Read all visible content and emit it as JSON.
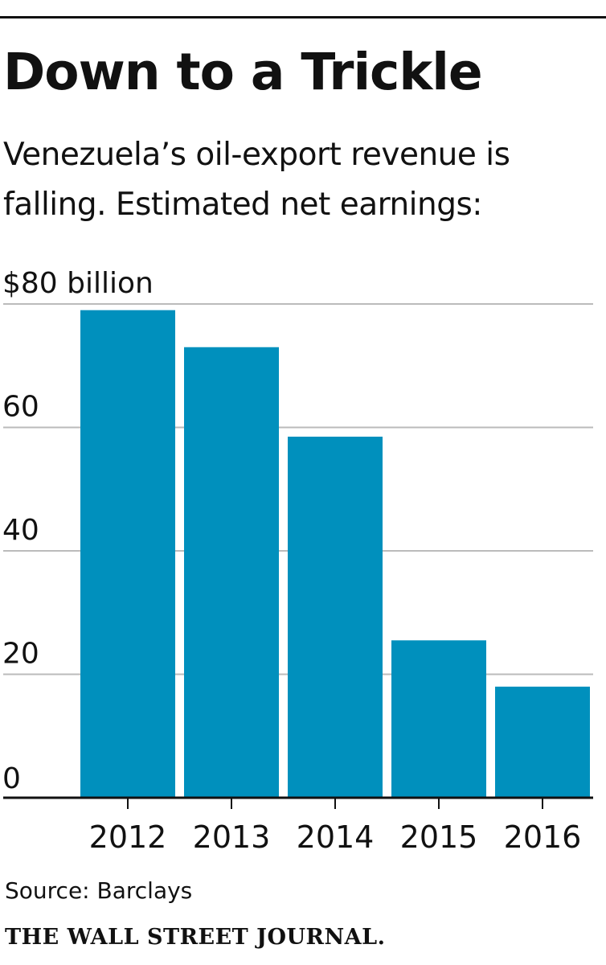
{
  "header": {
    "title": "Down to a Trickle",
    "subtitle": "Venezuela’s oil-export revenue is falling. Estimated net earnings:"
  },
  "chart_data": {
    "type": "bar",
    "categories": [
      "2012",
      "2013",
      "2014",
      "2015",
      "2016"
    ],
    "values": [
      79,
      73,
      58.5,
      25.5,
      18
    ],
    "ylim": [
      0,
      80
    ],
    "yticks": [
      0,
      20,
      40,
      60,
      80
    ],
    "ytick_labels": [
      "0",
      "20",
      "40",
      "60",
      "$80 billion"
    ],
    "grid": true,
    "bar_color": "#0090bd",
    "grid_color": "#bbbbbb",
    "axis_color": "#111111"
  },
  "footer": {
    "source": "Source: Barclays",
    "brand": "THE WALL STREET JOURNAL."
  }
}
